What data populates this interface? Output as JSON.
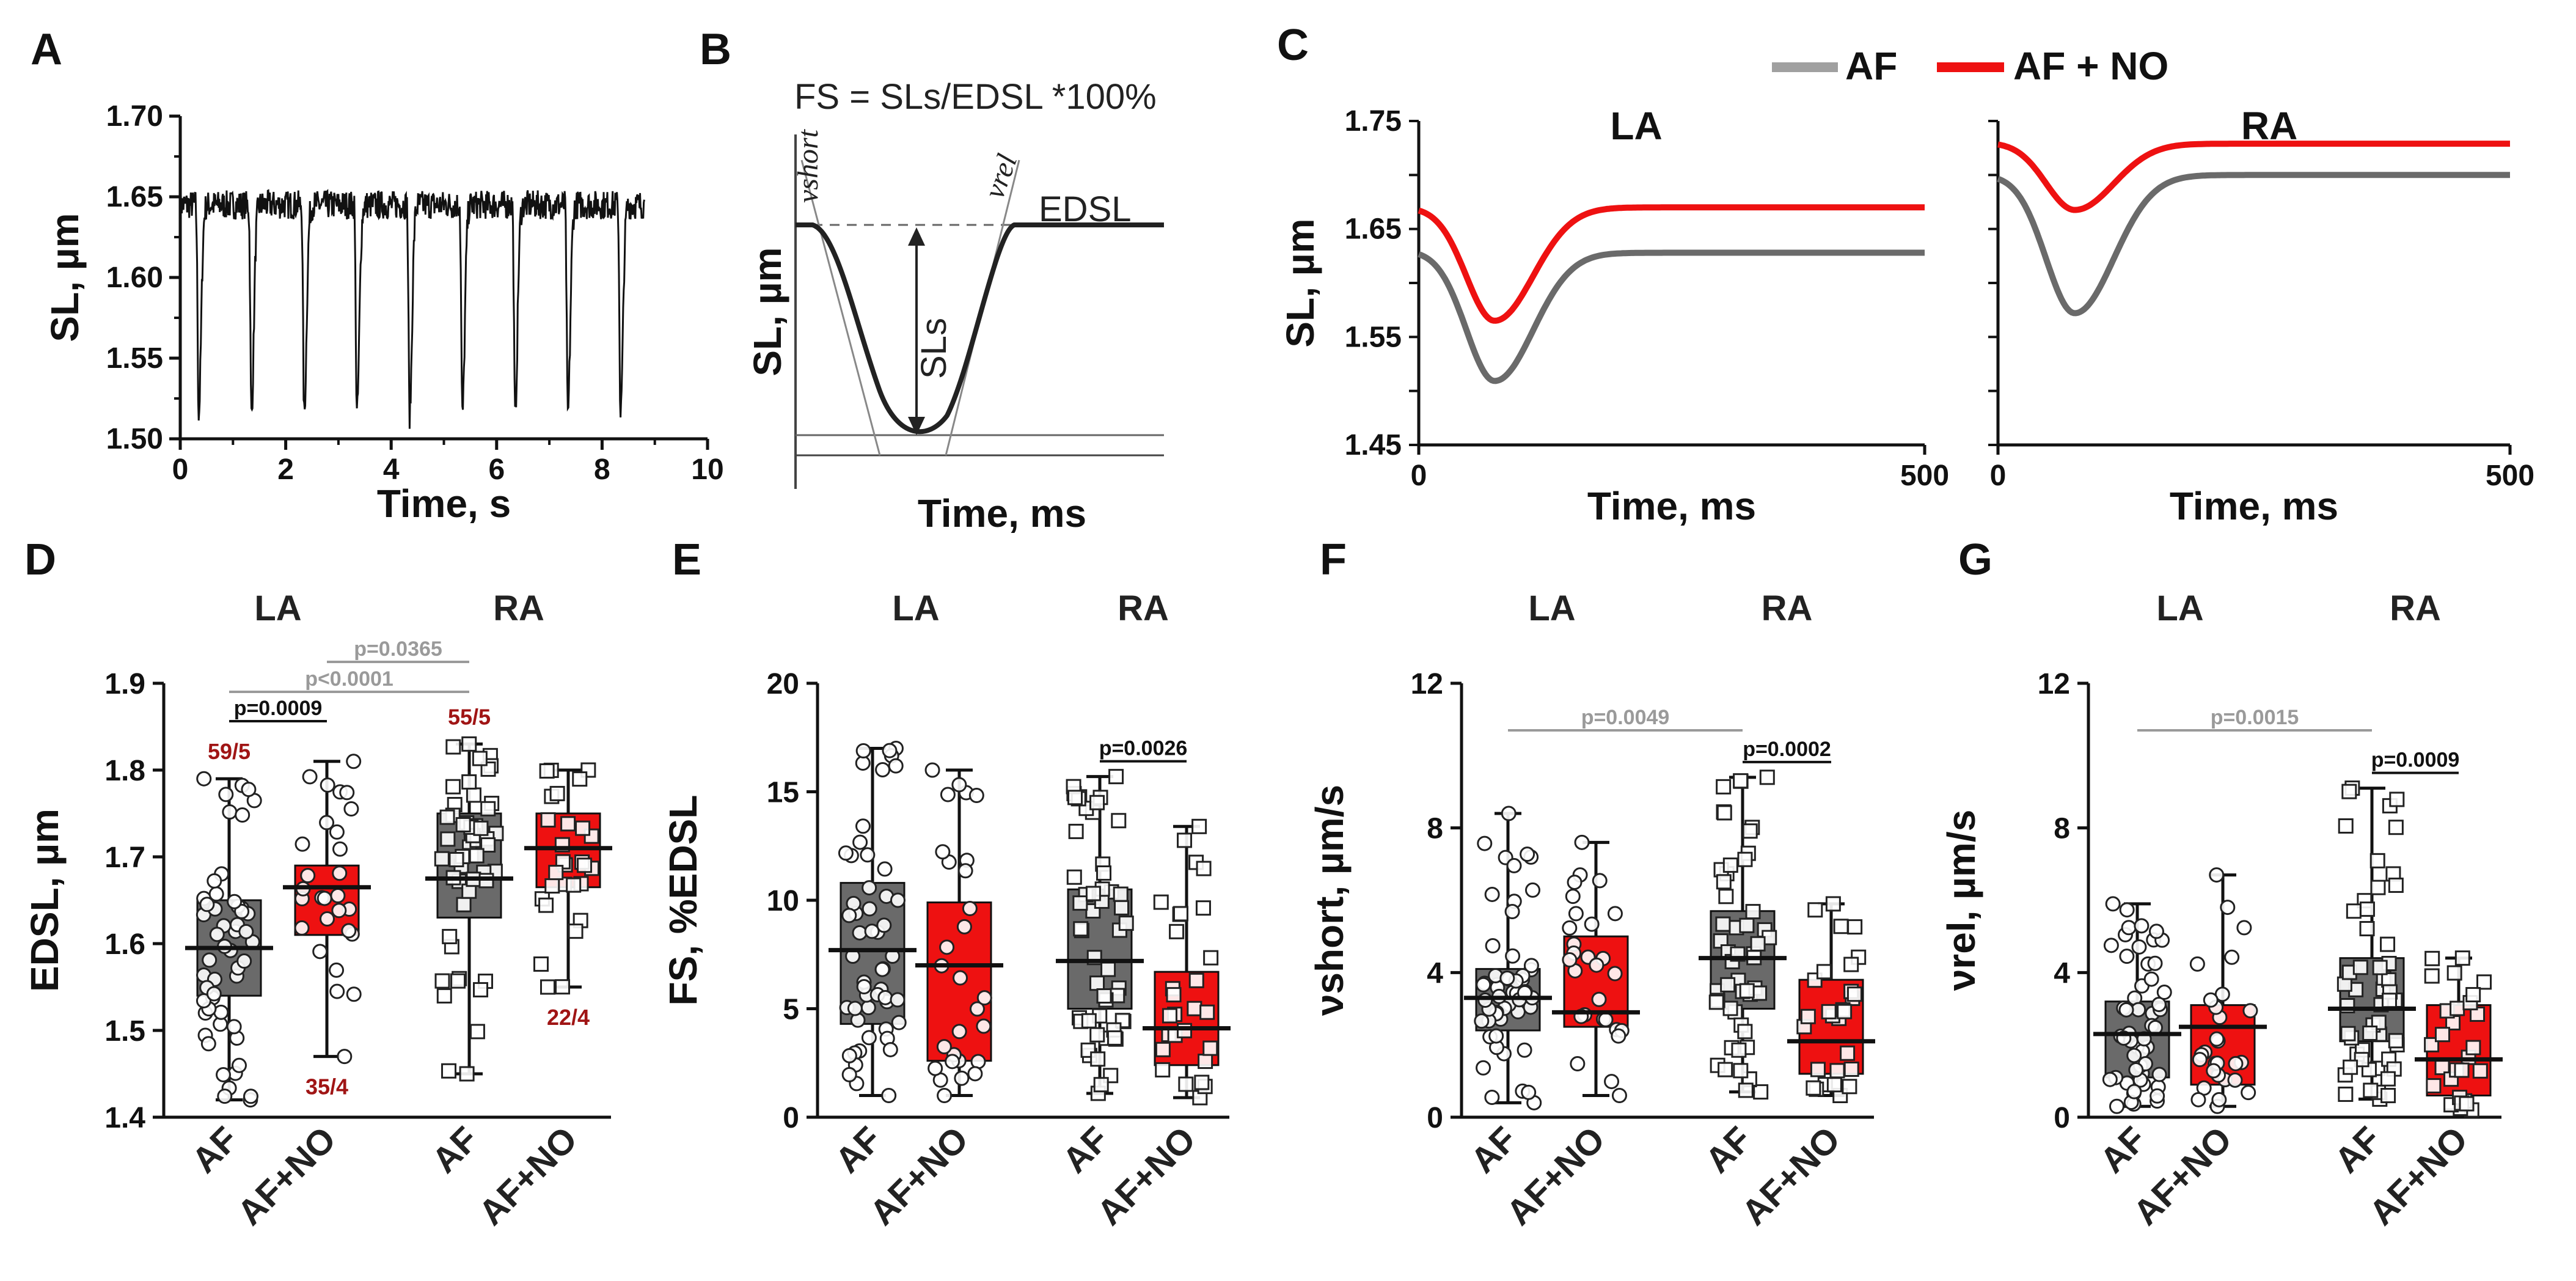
{
  "colors": {
    "af": "#6a6a6a",
    "afno": "#ee1111",
    "ink": "#111111",
    "gray_p": "#9a9a9a",
    "nlabel": "#a01515"
  },
  "panels": {
    "A": "A",
    "B": "B",
    "C": "C",
    "D": "D",
    "E": "E",
    "F": "F",
    "G": "G"
  },
  "panelB": {
    "formula": "FS = SLs/EDSL *100%",
    "ylabel": "SL, µm",
    "xlabel": "Time, ms",
    "edsl": "EDSL",
    "sls": "SLs",
    "vshort": "νshort",
    "vrel": "νrel"
  },
  "legend": {
    "af": "AF",
    "afno": "AF + NO"
  },
  "groups": {
    "la": "LA",
    "ra": "RA"
  },
  "chart_data": [
    {
      "id": "A",
      "type": "line",
      "title": "",
      "xlabel": "Time, s",
      "ylabel": "SL, µm",
      "xlim": [
        0,
        10
      ],
      "ylim": [
        1.5,
        1.7
      ],
      "xticks": [
        "0",
        "2",
        "4",
        "6",
        "8",
        "10"
      ],
      "yticks": [
        "1.50",
        "1.55",
        "1.60",
        "1.65",
        "1.70"
      ],
      "series": [
        {
          "name": "SL trace",
          "baseline": 1.645,
          "trough": 1.515,
          "contraction_times_s": [
            0.35,
            1.35,
            2.35,
            3.35,
            4.35,
            5.35,
            6.35,
            7.35,
            8.35
          ],
          "end_s": 8.8,
          "end_value": 1.64
        }
      ]
    },
    {
      "id": "B",
      "type": "line",
      "title": "FS = SLs/EDSL *100%",
      "xlabel": "Time, ms",
      "ylabel": "SL, µm",
      "series": [
        {
          "name": "schematic contraction",
          "baseline": "EDSL",
          "trough": "EDSL - SLs"
        }
      ]
    },
    {
      "id": "C",
      "type": "line",
      "xlabel": "Time, ms",
      "ylabel": "SL, µm",
      "legend": [
        "AF",
        "AF + NO"
      ],
      "subplots": [
        {
          "title": "LA",
          "xlim": [
            0,
            500
          ],
          "ylim": [
            1.45,
            1.75
          ],
          "xticks": [
            "0",
            "500"
          ],
          "yticks": [
            "1.45",
            "1.55",
            "1.65",
            "1.75"
          ],
          "series": [
            {
              "name": "AF",
              "baseline": 1.63,
              "min": 1.51,
              "min_time_ms": 75,
              "end": 1.628
            },
            {
              "name": "AF + NO",
              "baseline": 1.67,
              "min": 1.565,
              "min_time_ms": 75,
              "end": 1.67
            }
          ]
        },
        {
          "title": "RA",
          "xlim": [
            0,
            500
          ],
          "ylim": [
            1.45,
            1.75
          ],
          "xticks": [
            "0",
            "500"
          ],
          "yticks": [],
          "series": [
            {
              "name": "AF",
              "baseline": 1.7,
              "min": 1.572,
              "min_time_ms": 75,
              "end": 1.7
            },
            {
              "name": "AF + NO",
              "baseline": 1.73,
              "min": 1.668,
              "min_time_ms": 75,
              "end": 1.729
            }
          ]
        }
      ]
    },
    {
      "id": "D",
      "type": "box",
      "ylabel": "EDSL, µm",
      "ylim": [
        1.4,
        1.9
      ],
      "yticks": [
        "1.4",
        "1.5",
        "1.6",
        "1.7",
        "1.8",
        "1.9"
      ],
      "categories": [
        "AF",
        "AF+NO",
        "AF",
        "AF+NO"
      ],
      "groups": [
        "LA",
        "RA"
      ],
      "boxes": [
        {
          "min": 1.42,
          "q1": 1.54,
          "median": 1.595,
          "q3": 1.65,
          "max": 1.79
        },
        {
          "min": 1.47,
          "q1": 1.61,
          "median": 1.665,
          "q3": 1.69,
          "max": 1.81
        },
        {
          "min": 1.45,
          "q1": 1.63,
          "median": 1.675,
          "q3": 1.75,
          "max": 1.83
        },
        {
          "min": 1.55,
          "q1": 1.665,
          "median": 1.71,
          "q3": 1.75,
          "max": 1.8
        }
      ],
      "n_labels": [
        "59/5",
        "35/4",
        "55/5",
        "22/4"
      ],
      "pvalues": [
        {
          "text": "p=0.0365",
          "from": 1,
          "to": 2,
          "gray": true
        },
        {
          "text": "p<0.0001",
          "from": 0,
          "to": 2,
          "gray": true
        },
        {
          "text": "p=0.0009",
          "from": 0,
          "to": 1,
          "gray": false
        }
      ]
    },
    {
      "id": "E",
      "type": "box",
      "ylabel": "FS,  %EDSL",
      "ylim": [
        0,
        20
      ],
      "yticks": [
        "0",
        "5",
        "10",
        "15",
        "20"
      ],
      "categories": [
        "AF",
        "AF+NO",
        "AF",
        "AF+NO"
      ],
      "groups": [
        "LA",
        "RA"
      ],
      "boxes": [
        {
          "min": 1.0,
          "q1": 4.3,
          "median": 7.7,
          "q3": 10.8,
          "max": 17.0
        },
        {
          "min": 1.0,
          "q1": 2.6,
          "median": 7.0,
          "q3": 9.9,
          "max": 16.0
        },
        {
          "min": 1.1,
          "q1": 5.0,
          "median": 7.2,
          "q3": 10.5,
          "max": 15.7
        },
        {
          "min": 0.9,
          "q1": 2.4,
          "median": 4.1,
          "q3": 6.7,
          "max": 13.4
        }
      ],
      "pvalues": [
        {
          "text": "p=0.0026",
          "from": 2,
          "to": 3,
          "gray": false
        }
      ]
    },
    {
      "id": "F",
      "type": "box",
      "ylabel": "νshort, µm/s",
      "ylim": [
        0,
        12
      ],
      "yticks": [
        "0",
        "4",
        "8",
        "12"
      ],
      "categories": [
        "AF",
        "AF+NO",
        "AF",
        "AF+NO"
      ],
      "groups": [
        "LA",
        "RA"
      ],
      "boxes": [
        {
          "min": 0.4,
          "q1": 2.4,
          "median": 3.3,
          "q3": 4.1,
          "max": 8.4
        },
        {
          "min": 0.6,
          "q1": 2.5,
          "median": 2.9,
          "q3": 5.0,
          "max": 7.6
        },
        {
          "min": 0.7,
          "q1": 3.0,
          "median": 4.4,
          "q3": 5.7,
          "max": 9.4
        },
        {
          "min": 0.6,
          "q1": 1.2,
          "median": 2.1,
          "q3": 3.8,
          "max": 5.9
        }
      ],
      "pvalues": [
        {
          "text": "p=0.0049",
          "from": 0,
          "to": 2,
          "gray": true
        },
        {
          "text": "p=0.0002",
          "from": 2,
          "to": 3,
          "gray": false
        }
      ]
    },
    {
      "id": "G",
      "type": "box",
      "ylabel": "νrel, µm/s",
      "ylim": [
        0,
        12
      ],
      "yticks": [
        "0",
        "4",
        "8",
        "12"
      ],
      "categories": [
        "AF",
        "AF+NO",
        "AF",
        "AF+NO"
      ],
      "groups": [
        "LA",
        "RA"
      ],
      "boxes": [
        {
          "min": 0.3,
          "q1": 1.1,
          "median": 2.3,
          "q3": 3.2,
          "max": 5.9
        },
        {
          "min": 0.3,
          "q1": 0.9,
          "median": 2.5,
          "q3": 3.1,
          "max": 6.7
        },
        {
          "min": 0.5,
          "q1": 2.1,
          "median": 3.0,
          "q3": 4.4,
          "max": 9.1
        },
        {
          "min": 0.2,
          "q1": 0.6,
          "median": 1.6,
          "q3": 3.1,
          "max": 4.4
        }
      ],
      "pvalues": [
        {
          "text": "p=0.0015",
          "from": 0,
          "to": 2,
          "gray": true
        },
        {
          "text": "p=0.0009",
          "from": 2,
          "to": 3,
          "gray": false
        }
      ]
    }
  ]
}
